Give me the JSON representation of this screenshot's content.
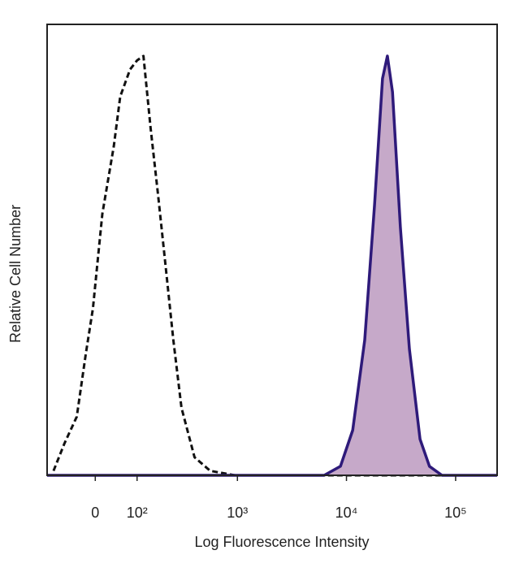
{
  "chart_data": {
    "type": "histogram-overlay",
    "xlabel": "Log Fluorescence Intensity",
    "ylabel": "Relative Cell Number",
    "xscale": "biexponential",
    "xlim": [
      -120,
      240000
    ],
    "ylim": [
      0,
      100
    ],
    "xticks": [
      0,
      {
        "value": 100,
        "label": "10²"
      },
      {
        "value": 1000,
        "label": "10³"
      },
      {
        "value": 10000,
        "label": "10⁴"
      },
      {
        "value": 100000,
        "label": "10⁵"
      }
    ],
    "series": [
      {
        "color": "#111111",
        "dash": true,
        "x": [
          -100,
          -70,
          -40,
          -20,
          -5,
          15,
          40,
          55,
          80,
          100,
          120,
          145,
          175,
          210,
          250,
          300,
          400,
          560,
          950,
          5000,
          240000
        ],
        "values": [
          1,
          7,
          13,
          27,
          37,
          58,
          73,
          84,
          90,
          92,
          93,
          77,
          62,
          46,
          30,
          15,
          4,
          1,
          0,
          0,
          0
        ]
      },
      {
        "color": "#2e1a7a",
        "fill": "#c6a9c9",
        "dash": false,
        "x": [
          -120,
          6250,
          8800,
          11400,
          14700,
          18100,
          21400,
          23700,
          26400,
          31200,
          37700,
          47200,
          57600,
          75000,
          240000
        ],
        "values": [
          0,
          0,
          2,
          10,
          30,
          60,
          88,
          93,
          85,
          55,
          28,
          8,
          2,
          0,
          0
        ]
      }
    ]
  }
}
